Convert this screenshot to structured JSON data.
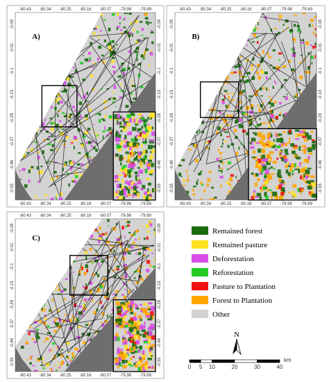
{
  "panels": [
    {
      "label": "A)"
    },
    {
      "label": "B)"
    },
    {
      "label": "C)"
    }
  ],
  "longitude_ticks": [
    "-80.43",
    "-80.34",
    "-80.25",
    "-80.16",
    "-80.07",
    "-79.98",
    "-79.89"
  ],
  "latitude_ticks": [
    "-0.08",
    "-0.01",
    "-0.1",
    "-0.19",
    "-0.28",
    "-0.37",
    "-0.46",
    "-0.55"
  ],
  "legend": [
    {
      "label": "Remained forest",
      "color": "#1a6a0f"
    },
    {
      "label": "Remained pasture",
      "color": "#ffe020"
    },
    {
      "label": "Deforestation",
      "color": "#d64ee6"
    },
    {
      "label": "Reforestation",
      "color": "#22cc22"
    },
    {
      "label": "Pasture to Plantation",
      "color": "#ee1111"
    },
    {
      "label": "Forest to Plantation",
      "color": "#ffa500"
    },
    {
      "label": "Other",
      "color": "#d3d3d3"
    }
  ],
  "north_arrow": "N",
  "scale_bar": {
    "ticks": [
      0,
      5,
      10,
      20,
      30,
      40
    ],
    "unit": "km"
  }
}
